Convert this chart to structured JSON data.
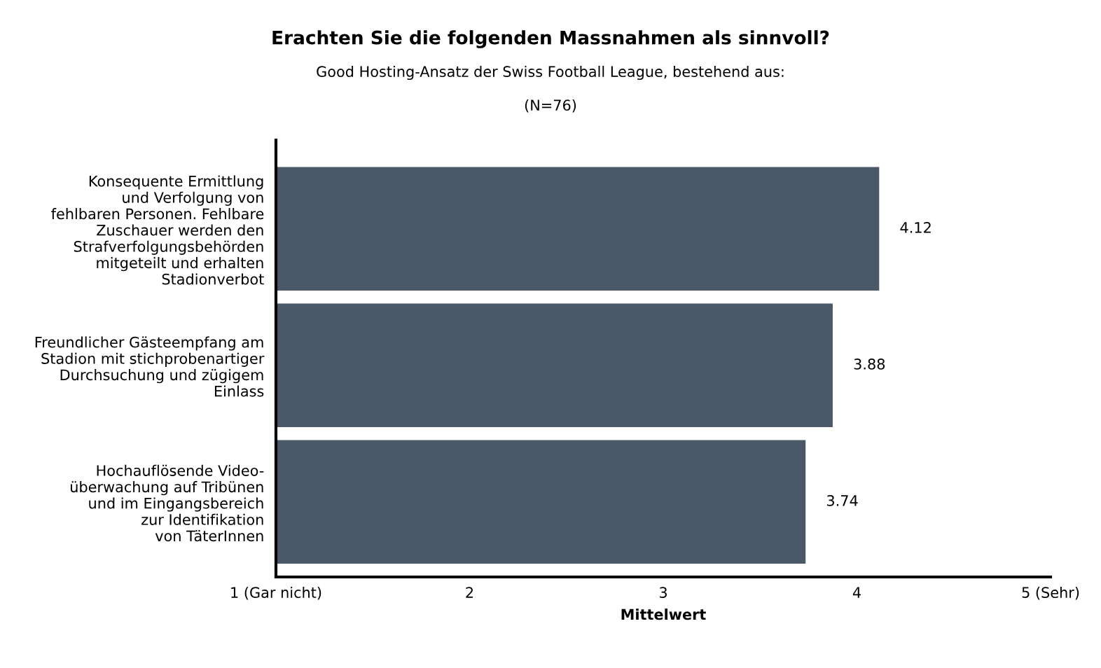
{
  "chart_data": {
    "type": "bar",
    "orientation": "horizontal",
    "title": "Erachten Sie die folgenden Massnahmen als sinnvoll?",
    "subtitle": "Good Hosting-Ansatz der Swiss Football League, bestehend aus:",
    "annotations": [
      "(N=76)"
    ],
    "categories": [
      "Konsequente Ermittlung\nund Verfolgung von\nfehlbaren Personen. Fehlbare\nZuschauer werden den\nStrafverfolgungsbehörden\nmitgeteilt und erhalten\nStadionverbot",
      "Freundlicher Gästeempfang am\nStadion mit stichprobenartiger\nDurchsuchung und zügigem\nEinlass",
      "Hochauflösende Video-\nüberwachung auf Tribünen\nund im Eingangsbereich\nzur Identifikation\nvon TäterInnen"
    ],
    "values": [
      4.12,
      3.88,
      3.74
    ],
    "color": "#4a5868",
    "xlabel": "Mittelwert",
    "xlim": [
      1,
      5
    ],
    "xticks": [
      {
        "value": 1,
        "label": "1 (Gar nicht)"
      },
      2,
      3,
      4,
      {
        "value": 5,
        "label": "5 (Sehr)"
      }
    ],
    "data_labels": true,
    "grid": false,
    "legend": false
  }
}
